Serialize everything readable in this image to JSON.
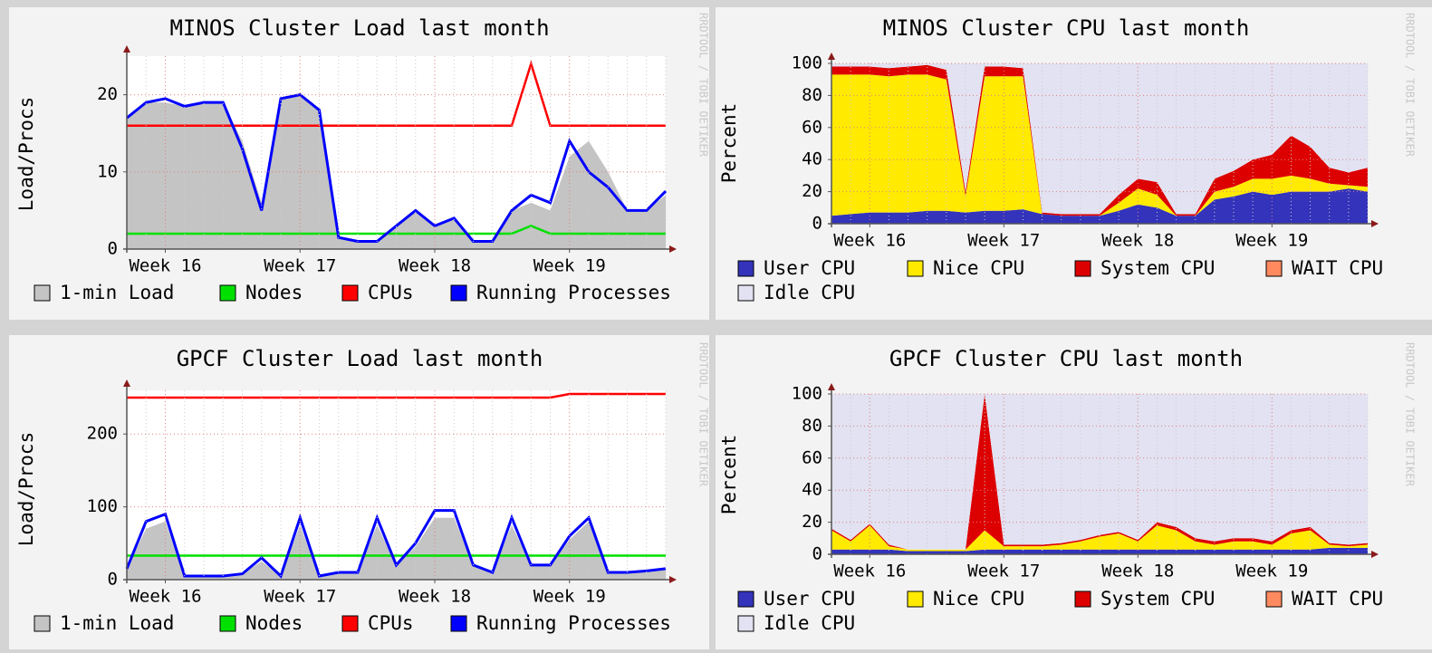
{
  "chart_data": [
    {
      "type": "line",
      "title": "MINOS Cluster Load last month",
      "ylabel": "Load/Procs",
      "watermark": "RRDTOOL / TOBI OETIKER",
      "categories": [
        null,
        null,
        "Week 16",
        null,
        null,
        null,
        null,
        null,
        null,
        "Week 17",
        null,
        null,
        null,
        null,
        null,
        null,
        "Week 18",
        null,
        null,
        null,
        null,
        null,
        null,
        "Week 19",
        null,
        null,
        null,
        null,
        null
      ],
      "ylim": [
        0,
        25
      ],
      "yticks": [
        0,
        10,
        20
      ],
      "grid": true,
      "series": [
        {
          "name": "1-min Load",
          "color": "#c4c4c4",
          "fill": true,
          "values": [
            17,
            19,
            19,
            18.5,
            19,
            19,
            14,
            6,
            19.5,
            20,
            18,
            1.5,
            1,
            1,
            3,
            5,
            3,
            4,
            1,
            1,
            5,
            6,
            5,
            12,
            14,
            10,
            5,
            5,
            7
          ]
        },
        {
          "name": "Nodes",
          "color": "#00e000",
          "values": [
            2,
            2,
            2,
            2,
            2,
            2,
            2,
            2,
            2,
            2,
            2,
            2,
            2,
            2,
            2,
            2,
            2,
            2,
            2,
            2,
            2,
            3,
            2,
            2,
            2,
            2,
            2,
            2,
            2
          ]
        },
        {
          "name": "CPUs",
          "color": "#ff0000",
          "values": [
            16,
            16,
            16,
            16,
            16,
            16,
            16,
            16,
            16,
            16,
            16,
            16,
            16,
            16,
            16,
            16,
            16,
            16,
            16,
            16,
            16,
            24,
            16,
            16,
            16,
            16,
            16,
            16,
            16
          ]
        },
        {
          "name": "Running Processes",
          "color": "#0000ff",
          "values": [
            17,
            19,
            19.5,
            18.5,
            19,
            19,
            13,
            5,
            19.5,
            20,
            18,
            1.5,
            1,
            1,
            3,
            5,
            3,
            4,
            1,
            1,
            5,
            7,
            6,
            14,
            10,
            8,
            5,
            5,
            7.5
          ]
        }
      ]
    },
    {
      "type": "stacked_area",
      "title": "MINOS Cluster CPU last month",
      "ylabel": "Percent",
      "watermark": "RRDTOOL / TOBI OETIKER",
      "categories": [
        null,
        null,
        "Week 16",
        null,
        null,
        null,
        null,
        null,
        null,
        "Week 17",
        null,
        null,
        null,
        null,
        null,
        null,
        "Week 18",
        null,
        null,
        null,
        null,
        null,
        null,
        "Week 19",
        null,
        null,
        null,
        null,
        null
      ],
      "ylim": [
        0,
        100
      ],
      "yticks": [
        0,
        20,
        40,
        60,
        80,
        100
      ],
      "grid": true,
      "series": [
        {
          "name": "User CPU",
          "color": "#3333bb",
          "values": [
            5,
            6,
            7,
            7,
            7,
            8,
            8,
            7,
            8,
            8,
            9,
            6,
            5,
            5,
            5,
            8,
            12,
            10,
            5,
            5,
            15,
            17,
            20,
            18,
            20,
            20,
            20,
            22,
            20
          ]
        },
        {
          "name": "Nice CPU",
          "color": "#ffea00",
          "values": [
            88,
            87,
            86,
            85,
            86,
            85,
            82,
            10,
            84,
            84,
            83,
            0,
            0,
            0,
            0,
            5,
            10,
            8,
            0,
            0,
            5,
            6,
            8,
            10,
            10,
            8,
            5,
            2,
            3
          ]
        },
        {
          "name": "System CPU",
          "color": "#dd0000",
          "values": [
            5,
            5,
            5,
            5,
            5,
            6,
            6,
            3,
            6,
            6,
            5,
            1,
            1,
            1,
            1,
            5,
            6,
            8,
            1,
            1,
            8,
            10,
            12,
            15,
            25,
            20,
            10,
            8,
            12
          ]
        },
        {
          "name": "WAIT CPU",
          "color": "#ff8a60",
          "values": [
            0,
            0,
            0,
            0,
            0,
            0,
            0,
            0,
            0,
            0,
            0,
            0,
            0,
            0,
            0,
            0,
            0,
            0,
            0,
            0,
            0,
            0,
            0,
            0,
            0,
            0,
            0,
            0,
            0
          ]
        },
        {
          "name": "Idle CPU",
          "color": "#e2e2f2",
          "values": [
            2,
            2,
            2,
            3,
            2,
            1,
            4,
            80,
            2,
            2,
            3,
            93,
            94,
            94,
            94,
            82,
            72,
            74,
            94,
            94,
            72,
            67,
            60,
            57,
            45,
            52,
            65,
            68,
            65
          ]
        }
      ]
    },
    {
      "type": "line",
      "title": "GPCF Cluster Load last month",
      "ylabel": "Load/Procs",
      "watermark": "RRDTOOL / TOBI OETIKER",
      "categories": [
        null,
        null,
        "Week 16",
        null,
        null,
        null,
        null,
        null,
        null,
        "Week 17",
        null,
        null,
        null,
        null,
        null,
        null,
        "Week 18",
        null,
        null,
        null,
        null,
        null,
        null,
        "Week 19",
        null,
        null,
        null,
        null,
        null
      ],
      "ylim": [
        0,
        260
      ],
      "yticks": [
        0,
        100,
        200
      ],
      "grid": true,
      "series": [
        {
          "name": "1-min Load",
          "color": "#c4c4c4",
          "fill": true,
          "values": [
            15,
            70,
            80,
            5,
            5,
            5,
            8,
            25,
            5,
            75,
            5,
            10,
            10,
            75,
            20,
            45,
            85,
            85,
            20,
            10,
            75,
            20,
            20,
            55,
            80,
            10,
            10,
            12,
            15
          ]
        },
        {
          "name": "Nodes",
          "color": "#00e000",
          "values": [
            33,
            33,
            33,
            33,
            33,
            33,
            33,
            33,
            33,
            33,
            33,
            33,
            33,
            33,
            33,
            33,
            33,
            33,
            33,
            33,
            33,
            33,
            33,
            33,
            33,
            33,
            33,
            33,
            33
          ]
        },
        {
          "name": "CPUs",
          "color": "#ff0000",
          "values": [
            250,
            250,
            250,
            250,
            250,
            250,
            250,
            250,
            250,
            250,
            250,
            250,
            250,
            250,
            250,
            250,
            250,
            250,
            250,
            250,
            250,
            250,
            250,
            255,
            255,
            255,
            255,
            255,
            255
          ]
        },
        {
          "name": "Running Processes",
          "color": "#0000ff",
          "values": [
            15,
            80,
            90,
            5,
            5,
            5,
            8,
            30,
            5,
            85,
            5,
            10,
            10,
            85,
            20,
            50,
            95,
            95,
            20,
            10,
            85,
            20,
            20,
            60,
            85,
            10,
            10,
            12,
            15
          ]
        }
      ]
    },
    {
      "type": "stacked_area",
      "title": "GPCF Cluster CPU last month",
      "ylabel": "Percent",
      "watermark": "RRDTOOL / TOBI OETIKER",
      "categories": [
        null,
        null,
        "Week 16",
        null,
        null,
        null,
        null,
        null,
        null,
        "Week 17",
        null,
        null,
        null,
        null,
        null,
        null,
        "Week 18",
        null,
        null,
        null,
        null,
        null,
        null,
        "Week 19",
        null,
        null,
        null,
        null,
        null
      ],
      "ylim": [
        0,
        100
      ],
      "yticks": [
        0,
        20,
        40,
        60,
        80,
        100
      ],
      "grid": true,
      "series": [
        {
          "name": "User CPU",
          "color": "#3333bb",
          "values": [
            3,
            3,
            3,
            3,
            2,
            2,
            2,
            2,
            3,
            3,
            3,
            3,
            3,
            3,
            3,
            3,
            3,
            3,
            3,
            3,
            3,
            3,
            3,
            3,
            3,
            3,
            4,
            4,
            4
          ]
        },
        {
          "name": "Nice CPU",
          "color": "#ffea00",
          "values": [
            12,
            5,
            15,
            2,
            1,
            1,
            1,
            1,
            12,
            2,
            2,
            2,
            3,
            5,
            8,
            10,
            5,
            15,
            12,
            5,
            3,
            5,
            5,
            3,
            10,
            12,
            2,
            1,
            2
          ]
        },
        {
          "name": "System CPU",
          "color": "#dd0000",
          "values": [
            1,
            1,
            1,
            1,
            0,
            0,
            0,
            0,
            85,
            1,
            1,
            1,
            1,
            1,
            1,
            1,
            1,
            2,
            2,
            2,
            2,
            2,
            2,
            2,
            2,
            2,
            1,
            1,
            1
          ]
        },
        {
          "name": "WAIT CPU",
          "color": "#ff8a60",
          "values": [
            0,
            0,
            0,
            0,
            0,
            0,
            0,
            0,
            0,
            0,
            0,
            0,
            0,
            0,
            0,
            0,
            0,
            0,
            0,
            0,
            0,
            0,
            0,
            0,
            0,
            0,
            0,
            0,
            0
          ]
        },
        {
          "name": "Idle CPU",
          "color": "#e2e2f2",
          "values": [
            84,
            91,
            81,
            94,
            97,
            97,
            97,
            97,
            0,
            94,
            94,
            94,
            93,
            91,
            88,
            86,
            91,
            80,
            83,
            90,
            92,
            90,
            90,
            92,
            85,
            83,
            93,
            94,
            93
          ]
        }
      ]
    }
  ]
}
